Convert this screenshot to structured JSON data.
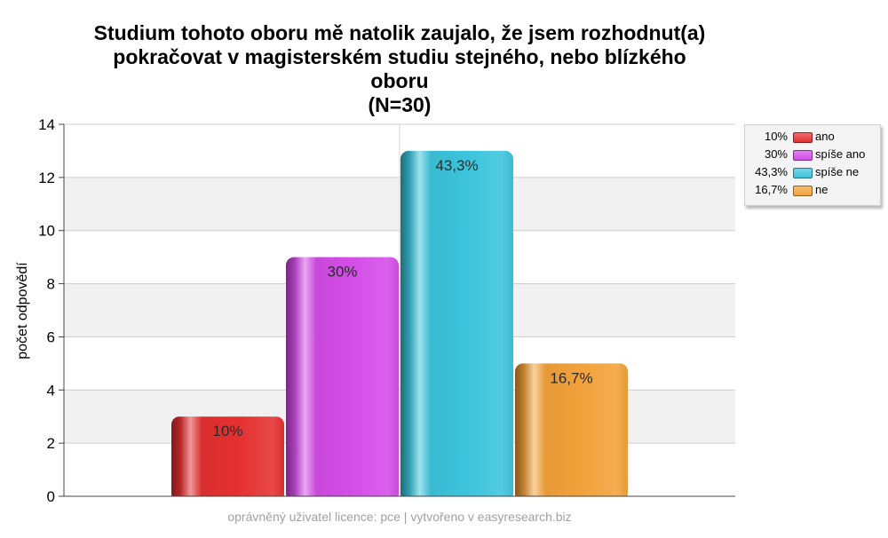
{
  "title_lines": [
    "Studium tohoto oboru mě natolik zaujalo, že jsem rozhodnut(a)",
    "pokračovat v magisterském studiu stejného, nebo blízkého",
    "oboru",
    "(N=30)"
  ],
  "footer": "oprávněný uživatel licence: pce | vytvořeno v easyresearch.biz",
  "chart_data": {
    "type": "bar",
    "title": "Studium tohoto oboru mě natolik zaujalo, že jsem rozhodnut(a) pokračovat v magisterském studiu stejného, nebo blízkého oboru (N=30)",
    "xlabel": "",
    "ylabel": "počet odpovědí",
    "ylim": [
      0,
      14
    ],
    "yticks": [
      0,
      2,
      4,
      6,
      8,
      10,
      12,
      14
    ],
    "grid": true,
    "legend_position": "top-right",
    "categories": [
      "ano",
      "spíše ano",
      "spíše ne",
      "ne"
    ],
    "values": [
      3,
      9,
      13,
      5
    ],
    "data_labels": [
      "10%",
      "30%",
      "43,3%",
      "16,7%"
    ],
    "colors": [
      "#e53030",
      "#d44de8",
      "#3cc4dc",
      "#f2a23a"
    ]
  }
}
